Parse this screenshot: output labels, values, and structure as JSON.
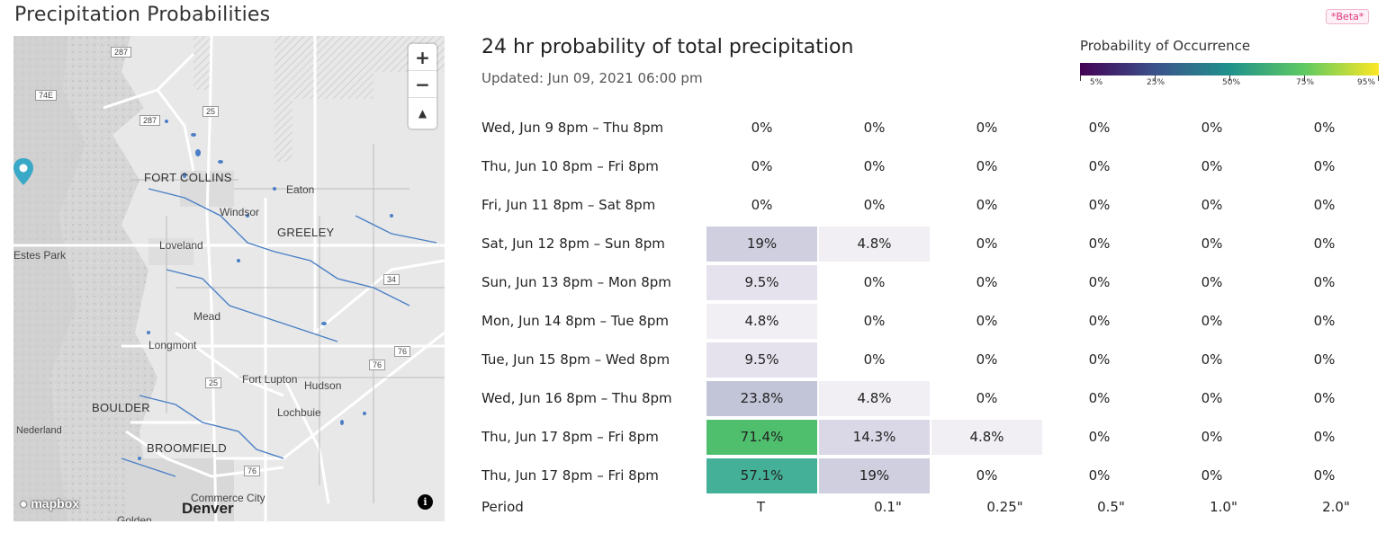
{
  "page": {
    "title": "Precipitation Probabilities",
    "badge": "*Beta*"
  },
  "map": {
    "zoom_in": "+",
    "zoom_out": "−",
    "compass": "▲",
    "logo": "mapbox",
    "info": "i",
    "labels": {
      "fort_collins": "FORT COLLINS",
      "eaton": "Eaton",
      "windsor": "Windsor",
      "greeley": "GREELEY",
      "loveland": "Loveland",
      "estes_park": "Estes Park",
      "mead": "Mead",
      "longmont": "Longmont",
      "fort_lupton": "Fort Lupton",
      "hudson": "Hudson",
      "boulder": "BOULDER",
      "lochbuie": "Lochbuie",
      "nederland": "Nederland",
      "broomfield": "BROOMFIELD",
      "commerce_city": "Commerce City",
      "denver": "Denver",
      "golden": "Golden"
    },
    "shields": {
      "i287a": "287",
      "i287b": "287",
      "i74e": "74E",
      "i25a": "25",
      "i25b": "25",
      "i34": "34",
      "i76a": "76",
      "i76b": "76",
      "i76c": "76"
    }
  },
  "panel": {
    "title": "24 hr probability of total precipitation",
    "updated": "Updated: Jun 09, 2021 06:00 pm"
  },
  "legend": {
    "title": "Probability of Occurrence",
    "labels": [
      "5%",
      "25%",
      "50%",
      "75%",
      "95%"
    ],
    "colors": [
      "#440154",
      "#3b528b",
      "#21918c",
      "#5ec962",
      "#fde725"
    ]
  },
  "table": {
    "columns": [
      "T",
      "0.1\"",
      "0.25\"",
      "0.5\"",
      "1.0\"",
      "2.0\""
    ],
    "period_label": "Period",
    "rows": [
      {
        "label": "Wed, Jun 9 8pm – Thu 8pm",
        "cells": [
          {
            "text": "0%",
            "color": ""
          },
          {
            "text": "0%",
            "color": ""
          },
          {
            "text": "0%",
            "color": ""
          },
          {
            "text": "0%",
            "color": ""
          },
          {
            "text": "0%",
            "color": ""
          },
          {
            "text": "0%",
            "color": ""
          }
        ]
      },
      {
        "label": "Thu, Jun 10 8pm – Fri 8pm",
        "cells": [
          {
            "text": "0%",
            "color": ""
          },
          {
            "text": "0%",
            "color": ""
          },
          {
            "text": "0%",
            "color": ""
          },
          {
            "text": "0%",
            "color": ""
          },
          {
            "text": "0%",
            "color": ""
          },
          {
            "text": "0%",
            "color": ""
          }
        ]
      },
      {
        "label": "Fri, Jun 11 8pm – Sat 8pm",
        "cells": [
          {
            "text": "0%",
            "color": ""
          },
          {
            "text": "0%",
            "color": ""
          },
          {
            "text": "0%",
            "color": ""
          },
          {
            "text": "0%",
            "color": ""
          },
          {
            "text": "0%",
            "color": ""
          },
          {
            "text": "0%",
            "color": ""
          }
        ]
      },
      {
        "label": "Sat, Jun 12 8pm – Sun 8pm",
        "cells": [
          {
            "text": "19%",
            "color": "#cfcfe0"
          },
          {
            "text": "4.8%",
            "color": "#f1eff4"
          },
          {
            "text": "0%",
            "color": ""
          },
          {
            "text": "0%",
            "color": ""
          },
          {
            "text": "0%",
            "color": ""
          },
          {
            "text": "0%",
            "color": ""
          }
        ]
      },
      {
        "label": "Sun, Jun 13 8pm – Mon 8pm",
        "cells": [
          {
            "text": "9.5%",
            "color": "#e5e2ed"
          },
          {
            "text": "0%",
            "color": ""
          },
          {
            "text": "0%",
            "color": ""
          },
          {
            "text": "0%",
            "color": ""
          },
          {
            "text": "0%",
            "color": ""
          },
          {
            "text": "0%",
            "color": ""
          }
        ]
      },
      {
        "label": "Mon, Jun 14 8pm – Tue 8pm",
        "cells": [
          {
            "text": "4.8%",
            "color": "#f1eff4"
          },
          {
            "text": "0%",
            "color": ""
          },
          {
            "text": "0%",
            "color": ""
          },
          {
            "text": "0%",
            "color": ""
          },
          {
            "text": "0%",
            "color": ""
          },
          {
            "text": "0%",
            "color": ""
          }
        ]
      },
      {
        "label": "Tue, Jun 15 8pm – Wed 8pm",
        "cells": [
          {
            "text": "9.5%",
            "color": "#e5e2ed"
          },
          {
            "text": "0%",
            "color": ""
          },
          {
            "text": "0%",
            "color": ""
          },
          {
            "text": "0%",
            "color": ""
          },
          {
            "text": "0%",
            "color": ""
          },
          {
            "text": "0%",
            "color": ""
          }
        ]
      },
      {
        "label": "Wed, Jun 16 8pm – Thu 8pm",
        "cells": [
          {
            "text": "23.8%",
            "color": "#c2c4d8"
          },
          {
            "text": "4.8%",
            "color": "#f1eff4"
          },
          {
            "text": "0%",
            "color": ""
          },
          {
            "text": "0%",
            "color": ""
          },
          {
            "text": "0%",
            "color": ""
          },
          {
            "text": "0%",
            "color": ""
          }
        ]
      },
      {
        "label": "Thu, Jun 17 8pm – Fri 8pm",
        "cells": [
          {
            "text": "71.4%",
            "color": "#4fbf6e"
          },
          {
            "text": "14.3%",
            "color": "#dad8e6"
          },
          {
            "text": "4.8%",
            "color": "#f1eff4"
          },
          {
            "text": "0%",
            "color": ""
          },
          {
            "text": "0%",
            "color": ""
          },
          {
            "text": "0%",
            "color": ""
          }
        ]
      },
      {
        "label": "Thu, Jun 17 8pm – Fri 8pm",
        "cells": [
          {
            "text": "57.1%",
            "color": "#45b098"
          },
          {
            "text": "19%",
            "color": "#cfcfe0"
          },
          {
            "text": "0%",
            "color": ""
          },
          {
            "text": "0%",
            "color": ""
          },
          {
            "text": "0%",
            "color": ""
          },
          {
            "text": "0%",
            "color": ""
          }
        ]
      }
    ]
  }
}
